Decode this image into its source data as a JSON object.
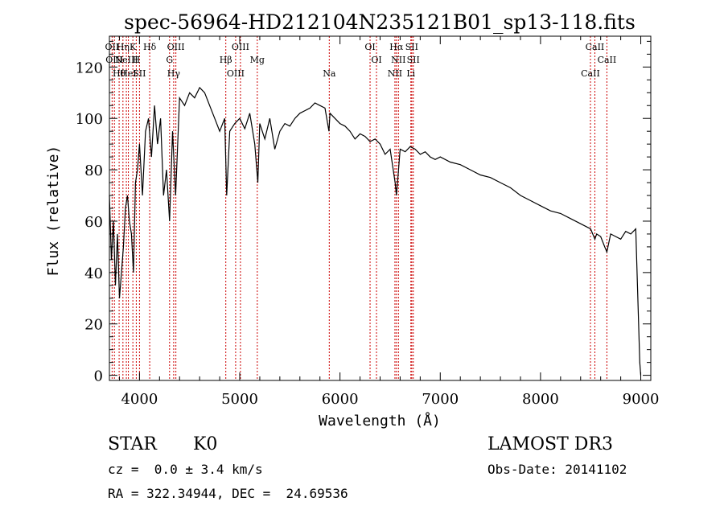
{
  "chart_data": {
    "type": "line",
    "title": "spec-56964-HD212104N235121B01_sp13-118.fits",
    "xlabel": "Wavelength (Å)",
    "ylabel": "Flux (relative)",
    "xlim": [
      3700,
      9100
    ],
    "ylim": [
      -2,
      132
    ],
    "xticks": [
      4000,
      5000,
      6000,
      7000,
      8000,
      9000
    ],
    "xtick_labels": [
      "4000",
      "5000",
      "6000",
      "7000",
      "8000",
      "9000"
    ],
    "yticks": [
      0,
      20,
      40,
      60,
      80,
      100,
      120
    ],
    "ytick_labels": [
      "0",
      "20",
      "40",
      "60",
      "80",
      "100",
      "120"
    ],
    "grid": false,
    "series": [
      {
        "name": "flux",
        "x": [
          3700,
          3720,
          3740,
          3760,
          3780,
          3800,
          3820,
          3840,
          3860,
          3880,
          3900,
          3920,
          3940,
          3960,
          3980,
          4000,
          4030,
          4060,
          4090,
          4120,
          4150,
          4180,
          4210,
          4240,
          4270,
          4300,
          4330,
          4360,
          4400,
          4450,
          4500,
          4550,
          4600,
          4650,
          4700,
          4750,
          4800,
          4850,
          4870,
          4900,
          4950,
          5000,
          5050,
          5100,
          5150,
          5180,
          5200,
          5250,
          5300,
          5350,
          5400,
          5450,
          5500,
          5550,
          5600,
          5650,
          5700,
          5750,
          5800,
          5850,
          5890,
          5900,
          5950,
          6000,
          6050,
          6100,
          6150,
          6200,
          6250,
          6300,
          6350,
          6400,
          6450,
          6500,
          6550,
          6563,
          6580,
          6600,
          6650,
          6700,
          6750,
          6800,
          6850,
          6900,
          6950,
          7000,
          7100,
          7200,
          7300,
          7400,
          7500,
          7600,
          7700,
          7800,
          7900,
          8000,
          8100,
          8200,
          8300,
          8400,
          8500,
          8542,
          8560,
          8600,
          8640,
          8662,
          8700,
          8750,
          8800,
          8850,
          8900,
          8950,
          8990,
          9000
        ],
        "values": [
          70,
          45,
          60,
          35,
          55,
          30,
          40,
          50,
          65,
          70,
          60,
          55,
          40,
          75,
          80,
          90,
          70,
          95,
          100,
          85,
          105,
          90,
          100,
          70,
          80,
          60,
          95,
          70,
          108,
          105,
          110,
          108,
          112,
          110,
          105,
          100,
          95,
          100,
          70,
          95,
          98,
          100,
          96,
          102,
          90,
          75,
          98,
          92,
          100,
          88,
          95,
          98,
          97,
          100,
          102,
          103,
          104,
          106,
          105,
          104,
          95,
          102,
          100,
          98,
          97,
          95,
          92,
          94,
          93,
          91,
          92,
          90,
          86,
          88,
          75,
          70,
          78,
          88,
          87,
          89,
          88,
          86,
          87,
          85,
          84,
          85,
          83,
          82,
          80,
          78,
          77,
          75,
          73,
          70,
          68,
          66,
          64,
          63,
          61,
          59,
          57,
          53,
          55,
          54,
          50,
          48,
          55,
          54,
          53,
          56,
          55,
          57,
          5,
          0
        ]
      }
    ],
    "line_markers": [
      {
        "wavelength": 3727,
        "labels": [
          "OII"
        ]
      },
      {
        "wavelength": 3750,
        "labels": [
          "OIII"
        ]
      },
      {
        "wavelength": 3797,
        "labels": [
          "Hθ"
        ]
      },
      {
        "wavelength": 3835,
        "labels": [
          "Hη"
        ]
      },
      {
        "wavelength": 3869,
        "labels": [
          "NeIII"
        ]
      },
      {
        "wavelength": 3889,
        "labels": [
          "HeI"
        ]
      },
      {
        "wavelength": 3934,
        "labels": [
          "K"
        ]
      },
      {
        "wavelength": 3968,
        "labels": [
          "H"
        ]
      },
      {
        "wavelength": 4000,
        "labels": [
          "SII"
        ]
      },
      {
        "wavelength": 4102,
        "labels": [
          "Hδ"
        ]
      },
      {
        "wavelength": 4300,
        "labels": [
          "G"
        ]
      },
      {
        "wavelength": 4341,
        "labels": [
          "Hγ"
        ]
      },
      {
        "wavelength": 4363,
        "labels": [
          "OIII"
        ]
      },
      {
        "wavelength": 4861,
        "labels": [
          "Hβ"
        ]
      },
      {
        "wavelength": 4959,
        "labels": [
          "OIII"
        ]
      },
      {
        "wavelength": 5007,
        "labels": [
          "OIII"
        ]
      },
      {
        "wavelength": 5175,
        "labels": [
          "Mg"
        ]
      },
      {
        "wavelength": 5893,
        "labels": [
          "Na"
        ]
      },
      {
        "wavelength": 6300,
        "labels": [
          "OI"
        ]
      },
      {
        "wavelength": 6364,
        "labels": [
          "OI"
        ]
      },
      {
        "wavelength": 6548,
        "labels": [
          "NII"
        ]
      },
      {
        "wavelength": 6563,
        "labels": [
          "Hα"
        ]
      },
      {
        "wavelength": 6583,
        "labels": [
          "NII"
        ]
      },
      {
        "wavelength": 6707,
        "labels": [
          "Li"
        ]
      },
      {
        "wavelength": 6716,
        "labels": [
          "SII"
        ]
      },
      {
        "wavelength": 6731,
        "labels": [
          "SII"
        ]
      },
      {
        "wavelength": 8498,
        "labels": [
          "CaII"
        ]
      },
      {
        "wavelength": 8542,
        "labels": [
          "CaII"
        ]
      },
      {
        "wavelength": 8662,
        "labels": [
          "CaII"
        ]
      }
    ]
  },
  "info": {
    "class": "STAR",
    "subclass": "K0",
    "survey": "LAMOST DR3",
    "redshift": "cz =  0.0 ± 3.4 km/s",
    "obs_date": "Obs-Date: 20141102",
    "coords": "RA = 322.34944, DEC =  24.69536"
  },
  "colors": {
    "background": "#ffffff",
    "ink": "#000000",
    "marker": "#cc0000"
  }
}
